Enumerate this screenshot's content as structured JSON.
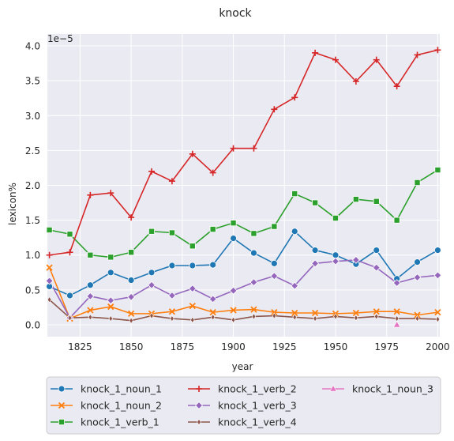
{
  "chart_data": {
    "type": "line",
    "title": "knock",
    "xlabel": "year",
    "ylabel": "lexicon%",
    "y_offset_label": "1e−5",
    "y_multiplier": 1e-05,
    "xlim": [
      1809,
      2001
    ],
    "ylim": [
      -0.17,
      4.17
    ],
    "x_ticks": [
      1825,
      1850,
      1875,
      1900,
      1925,
      1950,
      1975,
      2000
    ],
    "y_ticks": [
      0.0,
      0.5,
      1.0,
      1.5,
      2.0,
      2.5,
      3.0,
      3.5,
      4.0
    ],
    "y_tick_labels": [
      "0.0",
      "0.5",
      "1.0",
      "1.5",
      "2.0",
      "2.5",
      "3.0",
      "3.5",
      "4.0"
    ],
    "grid": true,
    "legend_position": "bottom",
    "series": [
      {
        "name": "knock_1_noun_1",
        "color": "#1f77b4",
        "marker": "circle",
        "x": [
          1810,
          1820,
          1830,
          1840,
          1850,
          1860,
          1870,
          1880,
          1890,
          1900,
          1910,
          1920,
          1930,
          1940,
          1950,
          1960,
          1970,
          1980,
          1990,
          2000
        ],
        "y": [
          0.55,
          0.42,
          0.57,
          0.75,
          0.64,
          0.75,
          0.85,
          0.85,
          0.86,
          1.24,
          1.03,
          0.88,
          1.34,
          1.07,
          1.0,
          0.87,
          1.07,
          0.66,
          0.9,
          1.07
        ]
      },
      {
        "name": "knock_1_noun_2",
        "color": "#ff7f0e",
        "marker": "x",
        "x": [
          1810,
          1820,
          1830,
          1840,
          1850,
          1860,
          1870,
          1880,
          1890,
          1900,
          1910,
          1920,
          1930,
          1940,
          1950,
          1960,
          1970,
          1980,
          1990,
          2000
        ],
        "y": [
          0.82,
          0.09,
          0.21,
          0.26,
          0.16,
          0.16,
          0.19,
          0.27,
          0.18,
          0.21,
          0.22,
          0.18,
          0.17,
          0.17,
          0.16,
          0.17,
          0.19,
          0.19,
          0.14,
          0.18
        ]
      },
      {
        "name": "knock_1_verb_1",
        "color": "#2ca02c",
        "marker": "square",
        "x": [
          1810,
          1820,
          1830,
          1840,
          1850,
          1860,
          1870,
          1880,
          1890,
          1900,
          1910,
          1920,
          1930,
          1940,
          1950,
          1960,
          1970,
          1980,
          1990,
          2000
        ],
        "y": [
          1.36,
          1.3,
          1.0,
          0.97,
          1.04,
          1.34,
          1.32,
          1.13,
          1.37,
          1.46,
          1.31,
          1.41,
          1.88,
          1.75,
          1.53,
          1.8,
          1.77,
          1.5,
          2.04,
          2.22
        ]
      },
      {
        "name": "knock_1_verb_2",
        "color": "#d62728",
        "marker": "plus",
        "x": [
          1810,
          1820,
          1830,
          1840,
          1850,
          1860,
          1870,
          1880,
          1890,
          1900,
          1910,
          1920,
          1930,
          1940,
          1950,
          1960,
          1970,
          1980,
          1990,
          2000
        ],
        "y": [
          1.0,
          1.04,
          1.86,
          1.89,
          1.54,
          2.2,
          2.06,
          2.45,
          2.18,
          2.53,
          2.53,
          3.09,
          3.26,
          3.9,
          3.8,
          3.49,
          3.8,
          3.42,
          3.87,
          3.94
        ]
      },
      {
        "name": "knock_1_verb_3",
        "color": "#9467bd",
        "marker": "diamond",
        "x": [
          1810,
          1820,
          1830,
          1840,
          1850,
          1860,
          1870,
          1880,
          1890,
          1900,
          1910,
          1920,
          1930,
          1940,
          1950,
          1960,
          1970,
          1980,
          1990,
          2000
        ],
        "y": [
          0.63,
          0.1,
          0.41,
          0.35,
          0.4,
          0.57,
          0.42,
          0.52,
          0.37,
          0.49,
          0.61,
          0.7,
          0.56,
          0.88,
          0.91,
          0.93,
          0.82,
          0.6,
          0.68,
          0.71
        ]
      },
      {
        "name": "knock_1_verb_4",
        "color": "#8c564b",
        "marker": "thin_diamond",
        "x": [
          1810,
          1820,
          1830,
          1840,
          1850,
          1860,
          1870,
          1880,
          1890,
          1900,
          1910,
          1920,
          1930,
          1940,
          1950,
          1960,
          1970,
          1980,
          1990,
          2000
        ],
        "y": [
          0.36,
          0.1,
          0.11,
          0.09,
          0.06,
          0.13,
          0.09,
          0.07,
          0.11,
          0.07,
          0.12,
          0.13,
          0.11,
          0.09,
          0.12,
          0.1,
          0.12,
          0.09,
          0.09,
          0.08
        ]
      },
      {
        "name": "knock_1_noun_3",
        "color": "#e377c2",
        "marker": "triangle",
        "x": [
          1980
        ],
        "y": [
          0.0
        ]
      }
    ]
  }
}
